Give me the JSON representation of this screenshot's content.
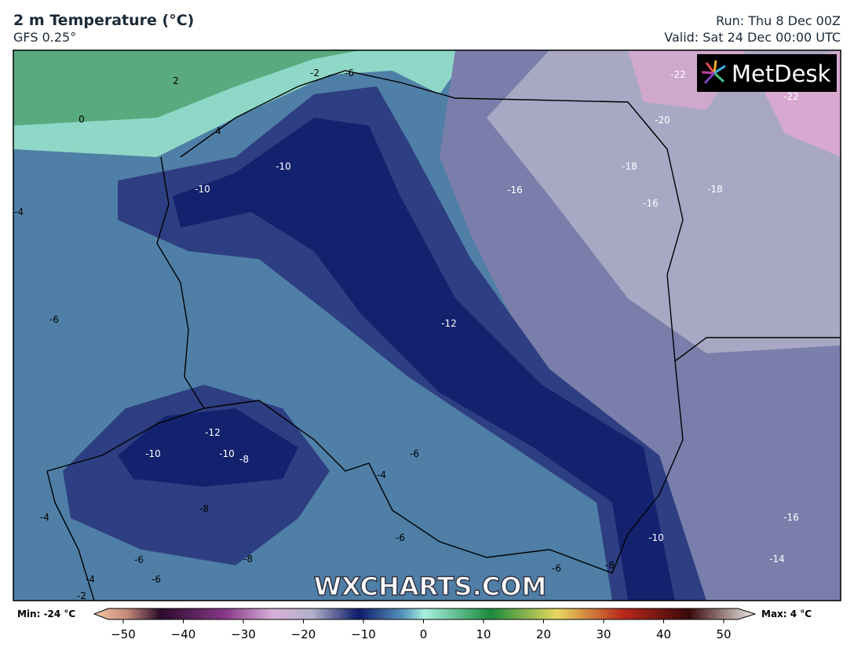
{
  "header": {
    "title": "2 m Temperature (°C)",
    "model": "GFS 0.25°",
    "run": "Run: Thu 8 Dec 00Z",
    "valid": "Valid: Sat 24 Dec 00:00 UTC"
  },
  "logo": "MetDesk",
  "watermark": "WXCHARTS.COM",
  "map": {
    "contour_labels": [
      "2",
      "-2",
      "-6",
      "0",
      "4",
      "-10",
      "-10",
      "-16",
      "-18",
      "-16",
      "-18",
      "-22",
      "-20",
      "-22",
      "-4",
      "-6",
      "-12",
      "-12",
      "-10",
      "-10",
      "-8",
      "-6",
      "-4",
      "-8",
      "-4",
      "-6",
      "-6",
      "-8",
      "-6",
      "-4",
      "-2",
      "-6",
      "-8",
      "-10",
      "-14",
      "-16"
    ]
  },
  "colorbar": {
    "min": "Min: -24 °C",
    "max": "Max: 4 °C",
    "ticks": [
      "−50",
      "−40",
      "−30",
      "−20",
      "−10",
      "0",
      "10",
      "20",
      "30",
      "40",
      "50"
    ]
  }
}
